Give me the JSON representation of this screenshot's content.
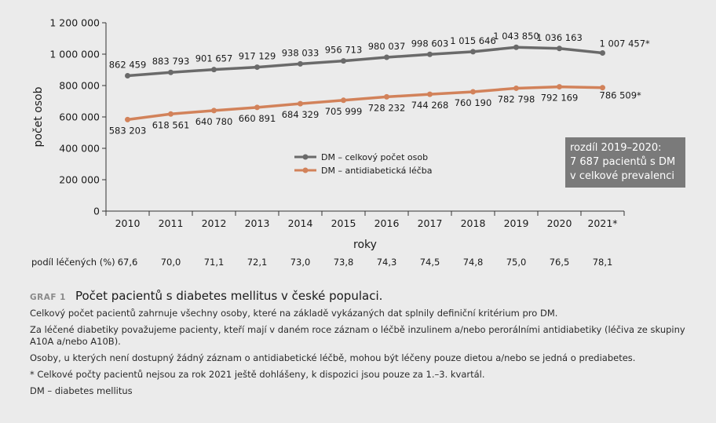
{
  "chart_data": {
    "type": "line",
    "categories": [
      "2010",
      "2011",
      "2012",
      "2013",
      "2014",
      "2015",
      "2016",
      "2017",
      "2018",
      "2019",
      "2020",
      "2021*"
    ],
    "xlabel": "roky",
    "ylabel": "počet osob",
    "ylim": [
      0,
      1200000
    ],
    "yticks": [
      0,
      200000,
      400000,
      600000,
      800000,
      1000000,
      1200000
    ],
    "ytick_labels": [
      "0",
      "200 000",
      "400 000",
      "600 000",
      "800 000",
      "1 000 000",
      "1 200 000"
    ],
    "grid": false,
    "legend_position": "center-right",
    "series": [
      {
        "name": "DM – celkový počet osob",
        "color": "#6a6a6a",
        "values": [
          862459,
          883793,
          901657,
          917129,
          938033,
          956713,
          980037,
          998603,
          1015646,
          1043850,
          1036163,
          1007457
        ],
        "labels": [
          "862 459",
          "883 793",
          "901 657",
          "917 129",
          "938 033",
          "956 713",
          "980 037",
          "998 603",
          "1 015 646",
          "1 043 850",
          "1 036 163",
          "1 007 457*"
        ]
      },
      {
        "name": "DM – antidiabetická léčba",
        "color": "#d2825a",
        "values": [
          583203,
          618561,
          640780,
          660891,
          684329,
          705999,
          728232,
          744268,
          760190,
          782798,
          792169,
          786509
        ],
        "labels": [
          "583 203",
          "618 561",
          "640 780",
          "660 891",
          "684 329",
          "705 999",
          "728 232",
          "744 268",
          "760 190",
          "782 798",
          "792 169",
          "786 509*"
        ]
      }
    ],
    "annotation": {
      "lines": [
        "rozdíl 2019–2020:",
        "7 687 pacientů s DM",
        "v celkové prevalenci"
      ],
      "background": "#7a7a7a",
      "color": "#ffffff"
    }
  },
  "share_row": {
    "label": "podíl léčených (%)",
    "values": [
      "67,6",
      "70,0",
      "71,1",
      "72,1",
      "73,0",
      "73,8",
      "74,3",
      "74,5",
      "74,8",
      "75,0",
      "76,5",
      "78,1"
    ]
  },
  "caption": {
    "tag": "GRAF 1",
    "title": "Počet pacientů s diabetes mellitus v české populaci.",
    "paragraphs": [
      "Celkový počet pacientů zahrnuje všechny osoby, které na základě vykázaných dat splnily definiční kritérium pro DM.",
      "Za léčené diabetiky považujeme pacienty, kteří mají v daném roce záznam o léčbě inzulinem a/nebo perorálními antidiabetiky (léčiva ze skupiny A10A a/nebo A10B).",
      "Osoby, u kterých není dostupný žádný záznam o antidiabetické léčbě, mohou být léčeny pouze dietou a/nebo se jedná o prediabetes.",
      "* Celkové počty pacientů nejsou za rok 2021 ještě dohlášeny, k dispozici jsou pouze za 1.–3. kvartál.",
      "DM – diabetes mellitus"
    ]
  }
}
